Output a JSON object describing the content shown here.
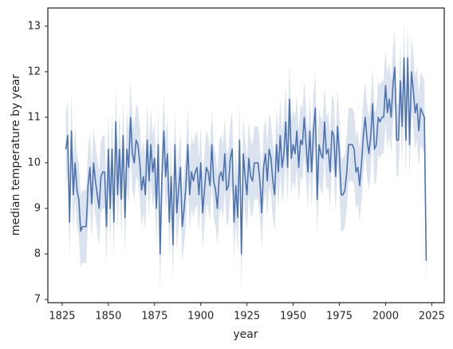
{
  "chart_data": {
    "type": "line",
    "xlabel": "year",
    "ylabel": "median temperature by year",
    "x": [
      1827,
      1828,
      1829,
      1830,
      1831,
      1832,
      1833,
      1834,
      1835,
      1836,
      1837,
      1838,
      1839,
      1840,
      1841,
      1842,
      1843,
      1844,
      1845,
      1846,
      1847,
      1848,
      1849,
      1850,
      1851,
      1852,
      1853,
      1854,
      1855,
      1856,
      1857,
      1858,
      1859,
      1860,
      1861,
      1862,
      1863,
      1864,
      1865,
      1866,
      1867,
      1868,
      1869,
      1870,
      1871,
      1872,
      1873,
      1874,
      1875,
      1876,
      1877,
      1878,
      1879,
      1880,
      1881,
      1882,
      1883,
      1884,
      1885,
      1886,
      1887,
      1888,
      1889,
      1890,
      1891,
      1892,
      1893,
      1894,
      1895,
      1896,
      1897,
      1898,
      1899,
      1900,
      1901,
      1902,
      1903,
      1904,
      1905,
      1906,
      1907,
      1908,
      1909,
      1910,
      1911,
      1912,
      1913,
      1914,
      1915,
      1916,
      1917,
      1918,
      1919,
      1920,
      1921,
      1922,
      1923,
      1924,
      1925,
      1926,
      1927,
      1928,
      1929,
      1930,
      1931,
      1932,
      1933,
      1934,
      1935,
      1936,
      1937,
      1938,
      1939,
      1940,
      1941,
      1942,
      1943,
      1944,
      1945,
      1946,
      1947,
      1948,
      1949,
      1950,
      1951,
      1952,
      1953,
      1954,
      1955,
      1956,
      1957,
      1958,
      1959,
      1960,
      1961,
      1962,
      1963,
      1964,
      1965,
      1966,
      1967,
      1968,
      1969,
      1970,
      1971,
      1972,
      1973,
      1974,
      1975,
      1976,
      1977,
      1978,
      1979,
      1980,
      1981,
      1982,
      1983,
      1984,
      1985,
      1986,
      1987,
      1988,
      1989,
      1990,
      1991,
      1992,
      1993,
      1994,
      1995,
      1996,
      1997,
      1998,
      1999,
      2000,
      2001,
      2002,
      2003,
      2004,
      2005,
      2006,
      2007,
      2008,
      2009,
      2010,
      2011,
      2012,
      2013,
      2014,
      2015,
      2016,
      2017,
      2018,
      2019,
      2020,
      2021,
      2022
    ],
    "series": [
      {
        "color": "#4c72b0",
        "values": [
          10.3,
          10.6,
          8.7,
          10.7,
          9.3,
          10.0,
          9.4,
          9.2,
          8.5,
          8.6,
          8.6,
          8.6,
          9.5,
          9.9,
          9.1,
          10.0,
          9.6,
          9.3,
          9.0,
          9.7,
          9.8,
          9.8,
          8.6,
          10.3,
          9.0,
          10.3,
          8.7,
          10.9,
          9.3,
          10.3,
          9.2,
          10.6,
          8.8,
          10.3,
          9.9,
          11.0,
          10.2,
          10.0,
          10.5,
          10.4,
          10.0,
          9.4,
          9.7,
          9.3,
          10.5,
          9.6,
          10.4,
          9.8,
          10.1,
          9.0,
          10.4,
          8.0,
          9.7,
          10.7,
          9.7,
          10.2,
          8.7,
          9.7,
          8.2,
          10.4,
          8.9,
          9.4,
          9.9,
          8.6,
          9.0,
          9.5,
          10.4,
          9.3,
          9.8,
          9.6,
          9.8,
          9.9,
          9.3,
          10.0,
          8.9,
          9.4,
          9.9,
          9.8,
          9.5,
          10.4,
          9.6,
          9.4,
          9.0,
          9.7,
          9.8,
          9.6,
          10.2,
          9.4,
          9.5,
          10.1,
          10.3,
          8.7,
          9.5,
          8.8,
          10.5,
          8.0,
          10.2,
          9.7,
          9.3,
          10.1,
          9.7,
          9.6,
          10.0,
          10.0,
          10.0,
          9.6,
          8.9,
          9.9,
          10.2,
          9.6,
          10.3,
          10.1,
          9.6,
          9.3,
          10.4,
          9.8,
          10.6,
          9.9,
          10.2,
          10.9,
          9.9,
          11.4,
          10.1,
          10.4,
          10.2,
          10.7,
          9.9,
          10.5,
          10.4,
          11.0,
          10.4,
          9.8,
          10.7,
          9.8,
          10.7,
          11.2,
          9.2,
          10.4,
          10.2,
          10.1,
          10.9,
          10.2,
          10.3,
          9.8,
          10.7,
          10.6,
          9.7,
          10.8,
          10.2,
          9.3,
          9.3,
          9.4,
          9.8,
          10.4,
          10.4,
          10.4,
          10.3,
          9.8,
          9.9,
          9.5,
          10.0,
          10.6,
          11.0,
          10.5,
          10.2,
          10.6,
          11.3,
          10.3,
          10.4,
          11.0,
          10.9,
          11.0,
          11.0,
          11.7,
          11.1,
          11.4,
          11.0,
          11.7,
          12.1,
          10.5,
          10.5,
          11.8,
          10.8,
          12.3,
          10.5,
          12.3,
          10.4,
          12.0,
          11.6,
          11.1,
          11.3,
          10.7,
          11.2,
          11.1,
          11.0,
          7.85
        ],
        "lower": [
          9.5,
          9.8,
          7.9,
          9.9,
          8.5,
          9.2,
          8.6,
          8.4,
          7.7,
          7.8,
          7.8,
          7.8,
          8.7,
          9.1,
          8.3,
          9.2,
          8.8,
          8.5,
          8.2,
          8.9,
          9.0,
          9.0,
          7.8,
          9.5,
          8.2,
          9.5,
          7.9,
          10.1,
          8.5,
          9.5,
          8.4,
          9.8,
          8.0,
          9.5,
          9.1,
          10.2,
          9.4,
          9.2,
          9.7,
          9.6,
          9.2,
          8.6,
          8.9,
          8.5,
          9.7,
          8.8,
          9.6,
          9.0,
          9.3,
          8.2,
          9.6,
          7.2,
          8.9,
          9.9,
          8.9,
          9.4,
          7.9,
          8.9,
          7.4,
          9.6,
          8.1,
          8.6,
          9.1,
          7.8,
          8.2,
          8.7,
          9.6,
          8.5,
          9.0,
          8.8,
          9.0,
          9.1,
          8.5,
          9.2,
          8.1,
          8.6,
          9.1,
          9.0,
          8.7,
          9.6,
          8.8,
          8.6,
          8.2,
          8.9,
          9.0,
          8.8,
          9.4,
          8.6,
          8.7,
          9.3,
          9.5,
          7.9,
          8.7,
          8.0,
          9.7,
          7.2,
          9.4,
          8.9,
          8.5,
          9.3,
          8.9,
          8.8,
          9.2,
          9.2,
          9.2,
          8.8,
          8.1,
          9.1,
          9.4,
          8.8,
          9.5,
          9.3,
          8.8,
          8.5,
          9.6,
          9.0,
          9.8,
          9.1,
          9.4,
          10.1,
          9.1,
          10.6,
          9.3,
          9.6,
          9.4,
          9.9,
          9.1,
          9.7,
          9.6,
          10.2,
          9.6,
          9.0,
          9.9,
          9.0,
          9.9,
          10.4,
          8.4,
          9.6,
          9.4,
          9.3,
          10.1,
          9.4,
          9.5,
          9.0,
          9.9,
          9.8,
          8.9,
          10.0,
          9.4,
          8.5,
          8.5,
          8.6,
          9.0,
          9.6,
          9.6,
          9.6,
          9.5,
          9.0,
          9.1,
          8.7,
          9.2,
          9.8,
          10.2,
          9.7,
          9.4,
          9.8,
          10.5,
          9.5,
          9.6,
          10.2,
          10.1,
          10.2,
          10.2,
          10.9,
          10.3,
          10.6,
          10.2,
          10.9,
          11.3,
          9.7,
          9.7,
          11.0,
          10.0,
          11.5,
          9.7,
          11.5,
          9.6,
          11.2,
          10.8,
          10.3,
          10.5,
          9.9,
          10.4,
          10.3,
          10.2,
          7.2
        ],
        "upper": [
          11.1,
          11.4,
          9.5,
          11.5,
          10.1,
          10.8,
          10.2,
          10.0,
          9.3,
          9.4,
          9.4,
          9.4,
          10.3,
          10.7,
          9.9,
          10.8,
          10.4,
          10.1,
          9.8,
          10.5,
          10.6,
          10.6,
          9.4,
          11.1,
          9.8,
          11.1,
          9.5,
          11.7,
          10.1,
          11.1,
          10.0,
          11.4,
          9.6,
          11.1,
          10.7,
          11.8,
          11.0,
          10.8,
          11.3,
          11.2,
          10.8,
          10.2,
          10.5,
          10.1,
          11.3,
          10.4,
          11.2,
          10.6,
          10.9,
          9.8,
          11.2,
          8.8,
          10.5,
          11.5,
          10.5,
          11.0,
          9.5,
          10.5,
          9.0,
          11.2,
          9.7,
          10.2,
          10.7,
          9.4,
          9.8,
          10.3,
          11.2,
          10.1,
          10.6,
          10.4,
          10.6,
          10.7,
          10.1,
          10.8,
          9.7,
          10.2,
          10.7,
          10.6,
          10.3,
          11.2,
          10.4,
          10.2,
          9.8,
          10.5,
          10.6,
          10.4,
          11.0,
          10.2,
          10.3,
          10.9,
          11.1,
          9.5,
          10.3,
          9.6,
          11.3,
          8.8,
          11.0,
          10.5,
          10.1,
          10.9,
          10.5,
          10.4,
          10.8,
          10.8,
          10.8,
          10.4,
          9.7,
          10.7,
          11.0,
          10.4,
          11.1,
          10.9,
          10.4,
          10.1,
          11.2,
          10.6,
          11.4,
          10.7,
          11.0,
          11.7,
          10.7,
          12.2,
          10.9,
          11.2,
          11.0,
          11.5,
          10.7,
          11.3,
          11.2,
          11.8,
          11.2,
          10.6,
          11.5,
          10.6,
          11.5,
          12.0,
          10.0,
          11.2,
          11.0,
          10.9,
          11.7,
          11.0,
          11.1,
          10.6,
          11.5,
          11.4,
          10.5,
          11.6,
          11.0,
          10.1,
          10.1,
          10.2,
          10.6,
          11.2,
          11.2,
          11.2,
          11.1,
          10.6,
          10.7,
          10.3,
          10.8,
          11.4,
          11.8,
          11.3,
          11.0,
          11.4,
          12.1,
          11.1,
          11.2,
          11.8,
          11.7,
          11.8,
          11.8,
          12.5,
          11.9,
          12.2,
          11.8,
          12.5,
          12.9,
          11.3,
          11.3,
          12.6,
          11.6,
          13.1,
          11.3,
          13.1,
          11.2,
          12.8,
          12.4,
          11.9,
          12.1,
          11.5,
          12.0,
          11.9,
          11.8,
          8.5
        ]
      }
    ],
    "xlim": [
      1817.25,
      2031.75
    ],
    "xticks": [
      1825,
      1850,
      1875,
      1900,
      1925,
      1950,
      1975,
      2000,
      2025
    ],
    "ylim": [
      6.93,
      13.4
    ],
    "yticks": [
      7,
      8,
      9,
      10,
      11,
      12,
      13
    ],
    "grid": false
  }
}
